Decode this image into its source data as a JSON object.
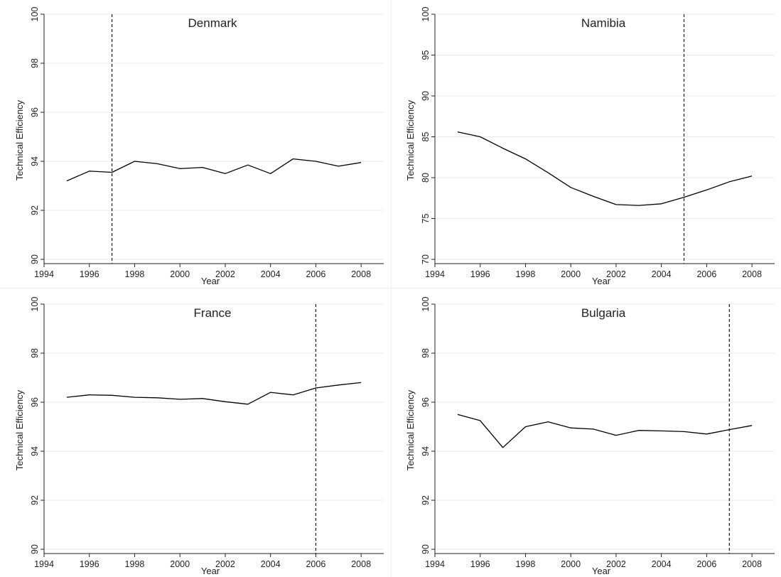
{
  "figure": {
    "colors": {
      "line": "#000000",
      "grid": "#e8e8e8",
      "axis": "#222222",
      "background": "#ffffff"
    }
  },
  "chart_data": [
    {
      "type": "line",
      "title": "Denmark",
      "xlabel": "Year",
      "ylabel": "Technical Efficiency",
      "xlim": [
        1994,
        2009
      ],
      "ylim": [
        90,
        100
      ],
      "xticks": [
        1994,
        1996,
        1998,
        2000,
        2002,
        2004,
        2006,
        2008
      ],
      "yticks": [
        90,
        92,
        94,
        96,
        98,
        100
      ],
      "vline": 1997,
      "grid": true,
      "x": [
        1995,
        1996,
        1997,
        1998,
        1999,
        2000,
        2001,
        2002,
        2003,
        2004,
        2005,
        2006,
        2007,
        2008
      ],
      "y": [
        93.2,
        93.6,
        93.55,
        94.0,
        93.9,
        93.7,
        93.75,
        93.5,
        93.85,
        93.5,
        94.1,
        94.0,
        93.8,
        93.95
      ]
    },
    {
      "type": "line",
      "title": "Namibia",
      "xlabel": "Year",
      "ylabel": "Technical Efficiency",
      "xlim": [
        1994,
        2009
      ],
      "ylim": [
        70,
        100
      ],
      "xticks": [
        1994,
        1996,
        1998,
        2000,
        2002,
        2004,
        2006,
        2008
      ],
      "yticks": [
        70,
        75,
        80,
        85,
        90,
        95,
        100
      ],
      "vline": 2005,
      "grid": true,
      "x": [
        1995,
        1996,
        1997,
        1998,
        1999,
        2000,
        2001,
        2002,
        2003,
        2004,
        2005,
        2006,
        2007,
        2008
      ],
      "y": [
        85.6,
        85.0,
        83.6,
        82.3,
        80.6,
        78.8,
        77.7,
        76.7,
        76.6,
        76.8,
        77.6,
        78.5,
        79.5,
        80.2
      ]
    },
    {
      "type": "line",
      "title": "France",
      "xlabel": "Year",
      "ylabel": "Technical Efficiency",
      "xlim": [
        1994,
        2009
      ],
      "ylim": [
        90,
        100
      ],
      "xticks": [
        1994,
        1996,
        1998,
        2000,
        2002,
        2004,
        2006,
        2008
      ],
      "yticks": [
        90,
        92,
        94,
        96,
        98,
        100
      ],
      "vline": 2006,
      "grid": true,
      "x": [
        1995,
        1996,
        1997,
        1998,
        1999,
        2000,
        2001,
        2002,
        2003,
        2004,
        2005,
        2006,
        2007,
        2008
      ],
      "y": [
        96.2,
        96.3,
        96.28,
        96.2,
        96.18,
        96.12,
        96.15,
        96.02,
        95.92,
        96.4,
        96.3,
        96.58,
        96.7,
        96.8
      ]
    },
    {
      "type": "line",
      "title": "Bulgaria",
      "xlabel": "Year",
      "ylabel": "Technical Efficiency",
      "xlim": [
        1994,
        2009
      ],
      "ylim": [
        90,
        100
      ],
      "xticks": [
        1994,
        1996,
        1998,
        2000,
        2002,
        2004,
        2006,
        2008
      ],
      "yticks": [
        90,
        92,
        94,
        96,
        98,
        100
      ],
      "vline": 2007,
      "grid": true,
      "x": [
        1995,
        1996,
        1997,
        1998,
        1999,
        2000,
        2001,
        2002,
        2003,
        2004,
        2005,
        2006,
        2007,
        2008
      ],
      "y": [
        95.5,
        95.25,
        94.15,
        95.0,
        95.2,
        94.95,
        94.9,
        94.65,
        94.85,
        94.83,
        94.8,
        94.7,
        94.88,
        95.05
      ]
    }
  ]
}
